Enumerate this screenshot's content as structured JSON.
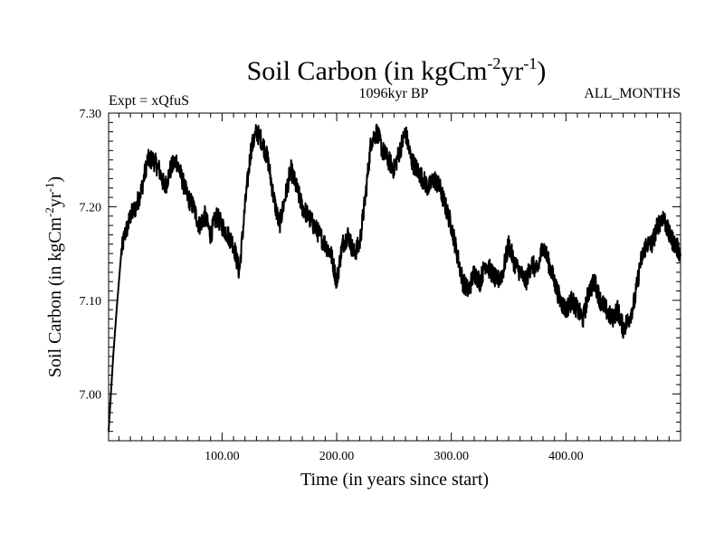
{
  "chart_data": {
    "type": "line",
    "title_main": "Soil Carbon (in kgCm",
    "title_sup1": "-2",
    "title_mid": "yr",
    "title_sup2": "-1",
    "title_end": ")",
    "subtitle_left": "Expt = xQfuS",
    "subtitle_center": "1096kyr BP",
    "subtitle_right": "ALL_MONTHS",
    "xlabel": "Time (in years since start)",
    "ylabel_main": "Soil Carbon (in kgCm",
    "ylabel_sup1": "-2",
    "ylabel_mid": "yr",
    "ylabel_sup2": "-1",
    "ylabel_end": ")",
    "xlim": [
      1,
      500
    ],
    "ylim": [
      6.95,
      7.3
    ],
    "x_ticks": [
      {
        "value": 100,
        "label": "100.00"
      },
      {
        "value": 200,
        "label": "200.00"
      },
      {
        "value": 300,
        "label": "300.00"
      },
      {
        "value": 400,
        "label": "400.00"
      }
    ],
    "y_ticks": [
      {
        "value": 7.0,
        "label": "7.00"
      },
      {
        "value": 7.1,
        "label": "7.10"
      },
      {
        "value": 7.2,
        "label": "7.20"
      },
      {
        "value": 7.3,
        "label": "7.30"
      }
    ],
    "line_color": "#000000",
    "series": [
      {
        "name": "Soil Carbon",
        "x": [
          1,
          3,
          5,
          8,
          10,
          12,
          15,
          18,
          20,
          25,
          30,
          35,
          40,
          45,
          50,
          55,
          60,
          65,
          70,
          75,
          80,
          85,
          90,
          95,
          100,
          105,
          110,
          115,
          120,
          125,
          130,
          135,
          140,
          145,
          150,
          155,
          160,
          165,
          170,
          175,
          180,
          185,
          190,
          195,
          200,
          205,
          210,
          215,
          220,
          225,
          230,
          235,
          240,
          245,
          250,
          255,
          260,
          265,
          270,
          275,
          280,
          285,
          290,
          295,
          300,
          305,
          310,
          315,
          320,
          325,
          330,
          335,
          340,
          345,
          350,
          355,
          360,
          365,
          370,
          375,
          380,
          385,
          390,
          395,
          400,
          405,
          410,
          415,
          420,
          425,
          430,
          435,
          440,
          445,
          450,
          455,
          460,
          465,
          470,
          475,
          480,
          485,
          490,
          495,
          500
        ],
        "y": [
          6.96,
          7.0,
          7.04,
          7.09,
          7.12,
          7.15,
          7.17,
          7.18,
          7.19,
          7.2,
          7.22,
          7.25,
          7.25,
          7.24,
          7.22,
          7.24,
          7.25,
          7.23,
          7.21,
          7.2,
          7.18,
          7.19,
          7.17,
          7.19,
          7.18,
          7.17,
          7.16,
          7.13,
          7.2,
          7.26,
          7.28,
          7.27,
          7.25,
          7.21,
          7.18,
          7.21,
          7.24,
          7.22,
          7.2,
          7.19,
          7.18,
          7.17,
          7.16,
          7.15,
          7.12,
          7.16,
          7.17,
          7.15,
          7.16,
          7.21,
          7.27,
          7.28,
          7.26,
          7.25,
          7.24,
          7.26,
          7.28,
          7.25,
          7.24,
          7.23,
          7.22,
          7.23,
          7.22,
          7.2,
          7.18,
          7.15,
          7.12,
          7.11,
          7.13,
          7.12,
          7.14,
          7.13,
          7.12,
          7.13,
          7.16,
          7.14,
          7.13,
          7.12,
          7.14,
          7.13,
          7.16,
          7.14,
          7.12,
          7.1,
          7.09,
          7.1,
          7.09,
          7.08,
          7.11,
          7.12,
          7.1,
          7.09,
          7.08,
          7.09,
          7.07,
          7.08,
          7.1,
          7.14,
          7.16,
          7.16,
          7.18,
          7.19,
          7.17,
          7.16,
          7.15
        ]
      }
    ]
  }
}
